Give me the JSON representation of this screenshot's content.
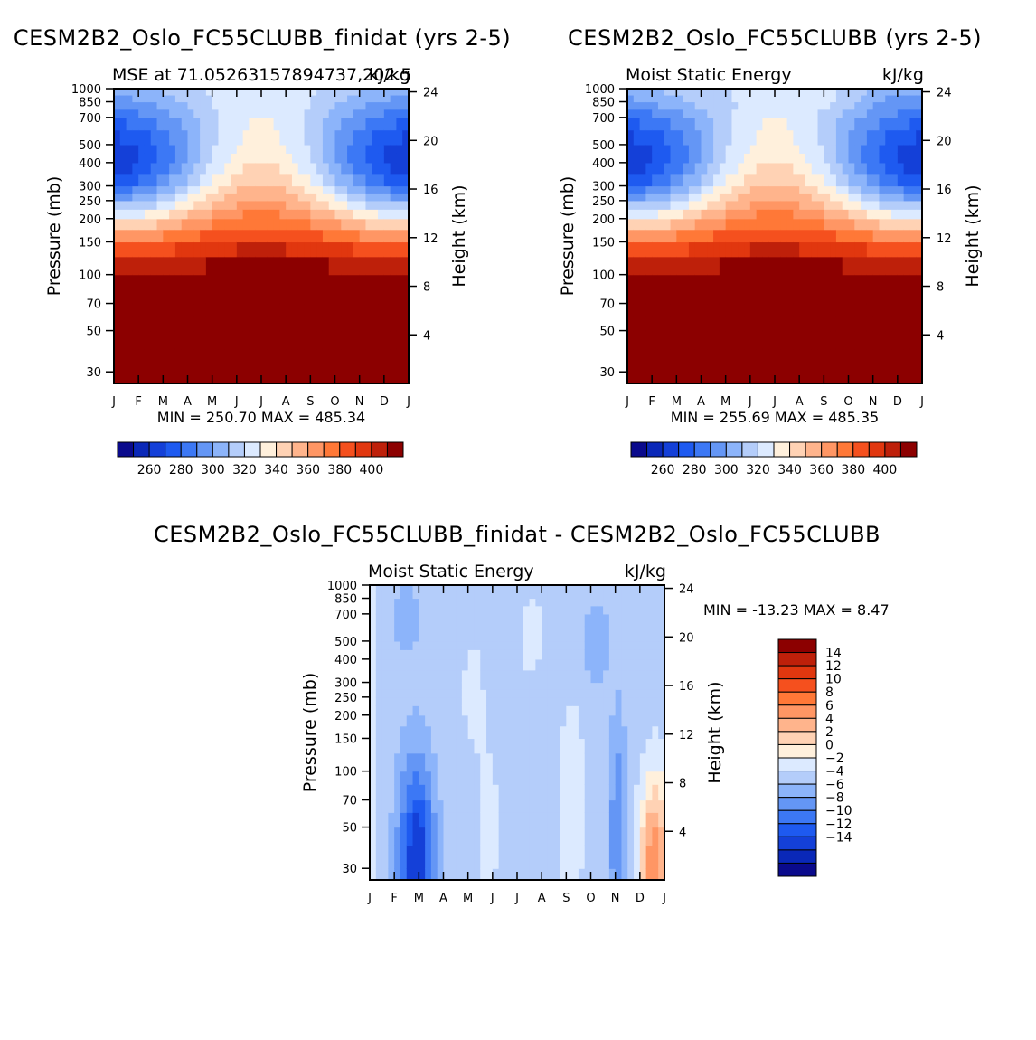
{
  "chart_data": [
    {
      "type": "heatmap",
      "title": "CESM2B2_Oslo_FC55CLUBB_finidat (yrs 2-5)",
      "subtitle_left": "MSE at 71.05263157894737,202.5",
      "subtitle_right": "kJ/kg",
      "ylabel": "Pressure (mb)",
      "ylabel_right": "Height (km)",
      "months": [
        "J",
        "F",
        "M",
        "A",
        "M",
        "J",
        "J",
        "A",
        "S",
        "O",
        "N",
        "D",
        "J"
      ],
      "pressure_ticks": [
        "30",
        "50",
        "70",
        "100",
        "150",
        "200",
        "250",
        "300",
        "400",
        "500",
        "700",
        "850",
        "1000"
      ],
      "height_ticks": [
        "24",
        "20",
        "16",
        "12",
        "8",
        "4"
      ],
      "stats": "MIN = 250.70  MAX = 485.34",
      "colorbar_labels": [
        "260",
        "280",
        "300",
        "320",
        "340",
        "360",
        "380",
        "400"
      ]
    },
    {
      "type": "heatmap",
      "title": "CESM2B2_Oslo_FC55CLUBB (yrs 2-5)",
      "subtitle_left": "Moist Static Energy",
      "subtitle_right": "kJ/kg",
      "ylabel": "Pressure (mb)",
      "ylabel_right": "Height (km)",
      "months": [
        "J",
        "F",
        "M",
        "A",
        "M",
        "J",
        "J",
        "A",
        "S",
        "O",
        "N",
        "D",
        "J"
      ],
      "pressure_ticks": [
        "30",
        "50",
        "70",
        "100",
        "150",
        "200",
        "250",
        "300",
        "400",
        "500",
        "700",
        "850",
        "1000"
      ],
      "height_ticks": [
        "24",
        "20",
        "16",
        "12",
        "8",
        "4"
      ],
      "stats": "MIN = 255.69  MAX = 485.35",
      "colorbar_labels": [
        "260",
        "280",
        "300",
        "320",
        "340",
        "360",
        "380",
        "400"
      ]
    },
    {
      "type": "heatmap",
      "title": "CESM2B2_Oslo_FC55CLUBB_finidat - CESM2B2_Oslo_FC55CLUBB",
      "subtitle_left": "Moist Static Energy",
      "subtitle_right": "kJ/kg",
      "ylabel": "Pressure (mb)",
      "ylabel_right": "Height (km)",
      "months": [
        "J",
        "F",
        "M",
        "A",
        "M",
        "J",
        "J",
        "A",
        "S",
        "O",
        "N",
        "D",
        "J"
      ],
      "pressure_ticks": [
        "30",
        "50",
        "70",
        "100",
        "150",
        "200",
        "250",
        "300",
        "400",
        "500",
        "700",
        "850",
        "1000"
      ],
      "height_ticks": [
        "24",
        "20",
        "16",
        "12",
        "8",
        "4"
      ],
      "stats": "MIN = -13.23 MAX =    8.47",
      "colorbar_labels": [
        "14",
        "12",
        "10",
        "8",
        "6",
        "4",
        "2",
        "0",
        "-2",
        "-4",
        "-6",
        "-8",
        "-10",
        "-12",
        "-14"
      ]
    }
  ],
  "colors": {
    "mse_palette": [
      "#0a0a8c",
      "#0a28b8",
      "#1440d8",
      "#1e5af0",
      "#3c78f5",
      "#6496f5",
      "#8cb4fa",
      "#b4cdfa",
      "#dceaff",
      "#fff0dc",
      "#ffd2b4",
      "#ffb48c",
      "#ff9664",
      "#ff7837",
      "#f5501e",
      "#e1370f",
      "#be200a",
      "#8c0000"
    ],
    "diff_palette": [
      "#0a0a8c",
      "#0a28b8",
      "#1440d8",
      "#1e5af0",
      "#3c78f5",
      "#6496f5",
      "#8cb4fa",
      "#b4cdfa",
      "#dceaff",
      "#fff0dc",
      "#ffd2b4",
      "#ffb48c",
      "#ff9664",
      "#ff7837",
      "#f5501e",
      "#e1370f",
      "#be200a",
      "#8c0000"
    ]
  }
}
